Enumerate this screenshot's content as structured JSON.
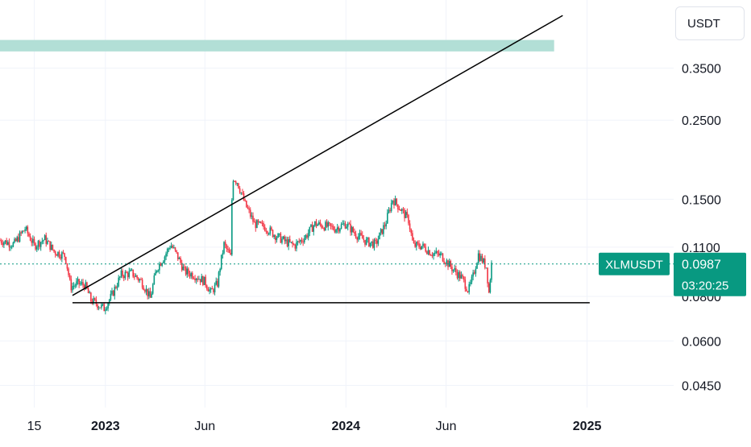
{
  "currency_label": "USDT",
  "symbol_label": "XLMUSDT",
  "last_price": "0.0987",
  "countdown": "03:20:25",
  "colors": {
    "up": "#089981",
    "down": "#f23645",
    "zone": "#b2dfd6",
    "label_bg": "#089981",
    "grid": "#f0f3fa",
    "text": "#131722"
  },
  "chart_data": {
    "type": "candlestick",
    "title": "",
    "xlabel": "",
    "ylabel": "",
    "y_scale": "log",
    "ylim": [
      0.039,
      0.49
    ],
    "x_range": [
      "2022-07-25",
      "2025-02-28"
    ],
    "y_ticks": [
      "0.3500",
      "0.2500",
      "0.1500",
      "0.1100",
      "0.0800",
      "0.0600",
      "0.0450"
    ],
    "x_ticks": [
      "15",
      "2023",
      "Jun",
      "2024",
      "Jun",
      "2025"
    ],
    "grid": true,
    "last_price": 0.0987,
    "price_points": [
      [
        "2022-07-25",
        0.115
      ],
      [
        "2022-08-15",
        0.112
      ],
      [
        "2022-09-01",
        0.124
      ],
      [
        "2022-09-15",
        0.111
      ],
      [
        "2022-10-01",
        0.116
      ],
      [
        "2022-10-15",
        0.107
      ],
      [
        "2022-11-01",
        0.104
      ],
      [
        "2022-11-09",
        0.085
      ],
      [
        "2022-11-20",
        0.087
      ],
      [
        "2022-12-01",
        0.086
      ],
      [
        "2022-12-10",
        0.078
      ],
      [
        "2022-12-30",
        0.074
      ],
      [
        "2023-01-10",
        0.08
      ],
      [
        "2023-01-25",
        0.092
      ],
      [
        "2023-02-10",
        0.093
      ],
      [
        "2023-02-25",
        0.088
      ],
      [
        "2023-03-10",
        0.079
      ],
      [
        "2023-03-20",
        0.096
      ],
      [
        "2023-04-01",
        0.104
      ],
      [
        "2023-04-10",
        0.112
      ],
      [
        "2023-04-20",
        0.104
      ],
      [
        "2023-05-01",
        0.094
      ],
      [
        "2023-05-15",
        0.092
      ],
      [
        "2023-06-01",
        0.088
      ],
      [
        "2023-06-10",
        0.082
      ],
      [
        "2023-06-20",
        0.087
      ],
      [
        "2023-06-30",
        0.112
      ],
      [
        "2023-07-10",
        0.103
      ],
      [
        "2023-07-13",
        0.173
      ],
      [
        "2023-07-20",
        0.168
      ],
      [
        "2023-08-01",
        0.145
      ],
      [
        "2023-08-15",
        0.128
      ],
      [
        "2023-09-01",
        0.125
      ],
      [
        "2023-09-15",
        0.119
      ],
      [
        "2023-10-01",
        0.114
      ],
      [
        "2023-10-15",
        0.111
      ],
      [
        "2023-11-01",
        0.118
      ],
      [
        "2023-11-15",
        0.128
      ],
      [
        "2023-12-01",
        0.126
      ],
      [
        "2023-12-15",
        0.124
      ],
      [
        "2024-01-01",
        0.128
      ],
      [
        "2024-01-15",
        0.12
      ],
      [
        "2024-02-01",
        0.114
      ],
      [
        "2024-02-15",
        0.112
      ],
      [
        "2024-03-01",
        0.128
      ],
      [
        "2024-03-12",
        0.15
      ],
      [
        "2024-03-25",
        0.14
      ],
      [
        "2024-04-05",
        0.131
      ],
      [
        "2024-04-12",
        0.111
      ],
      [
        "2024-04-25",
        0.111
      ],
      [
        "2024-05-10",
        0.106
      ],
      [
        "2024-05-25",
        0.104
      ],
      [
        "2024-06-10",
        0.096
      ],
      [
        "2024-06-25",
        0.09
      ],
      [
        "2024-07-05",
        0.083
      ],
      [
        "2024-07-12",
        0.091
      ],
      [
        "2024-07-20",
        0.105
      ],
      [
        "2024-08-01",
        0.097
      ],
      [
        "2024-08-05",
        0.082
      ],
      [
        "2024-08-09",
        0.0987
      ]
    ],
    "annotations": [
      {
        "type": "zone",
        "from": 0.39,
        "to": 0.42,
        "x_start": "2022-07-25",
        "x_end": "2024-11-12"
      },
      {
        "type": "trendline",
        "points": [
          [
            "2022-11-12",
            0.0805
          ],
          [
            "2024-11-25",
            0.492
          ]
        ]
      },
      {
        "type": "horizontal_line",
        "value": 0.0768,
        "x_start": "2022-11-12",
        "x_end": "2025-01-05"
      }
    ]
  }
}
